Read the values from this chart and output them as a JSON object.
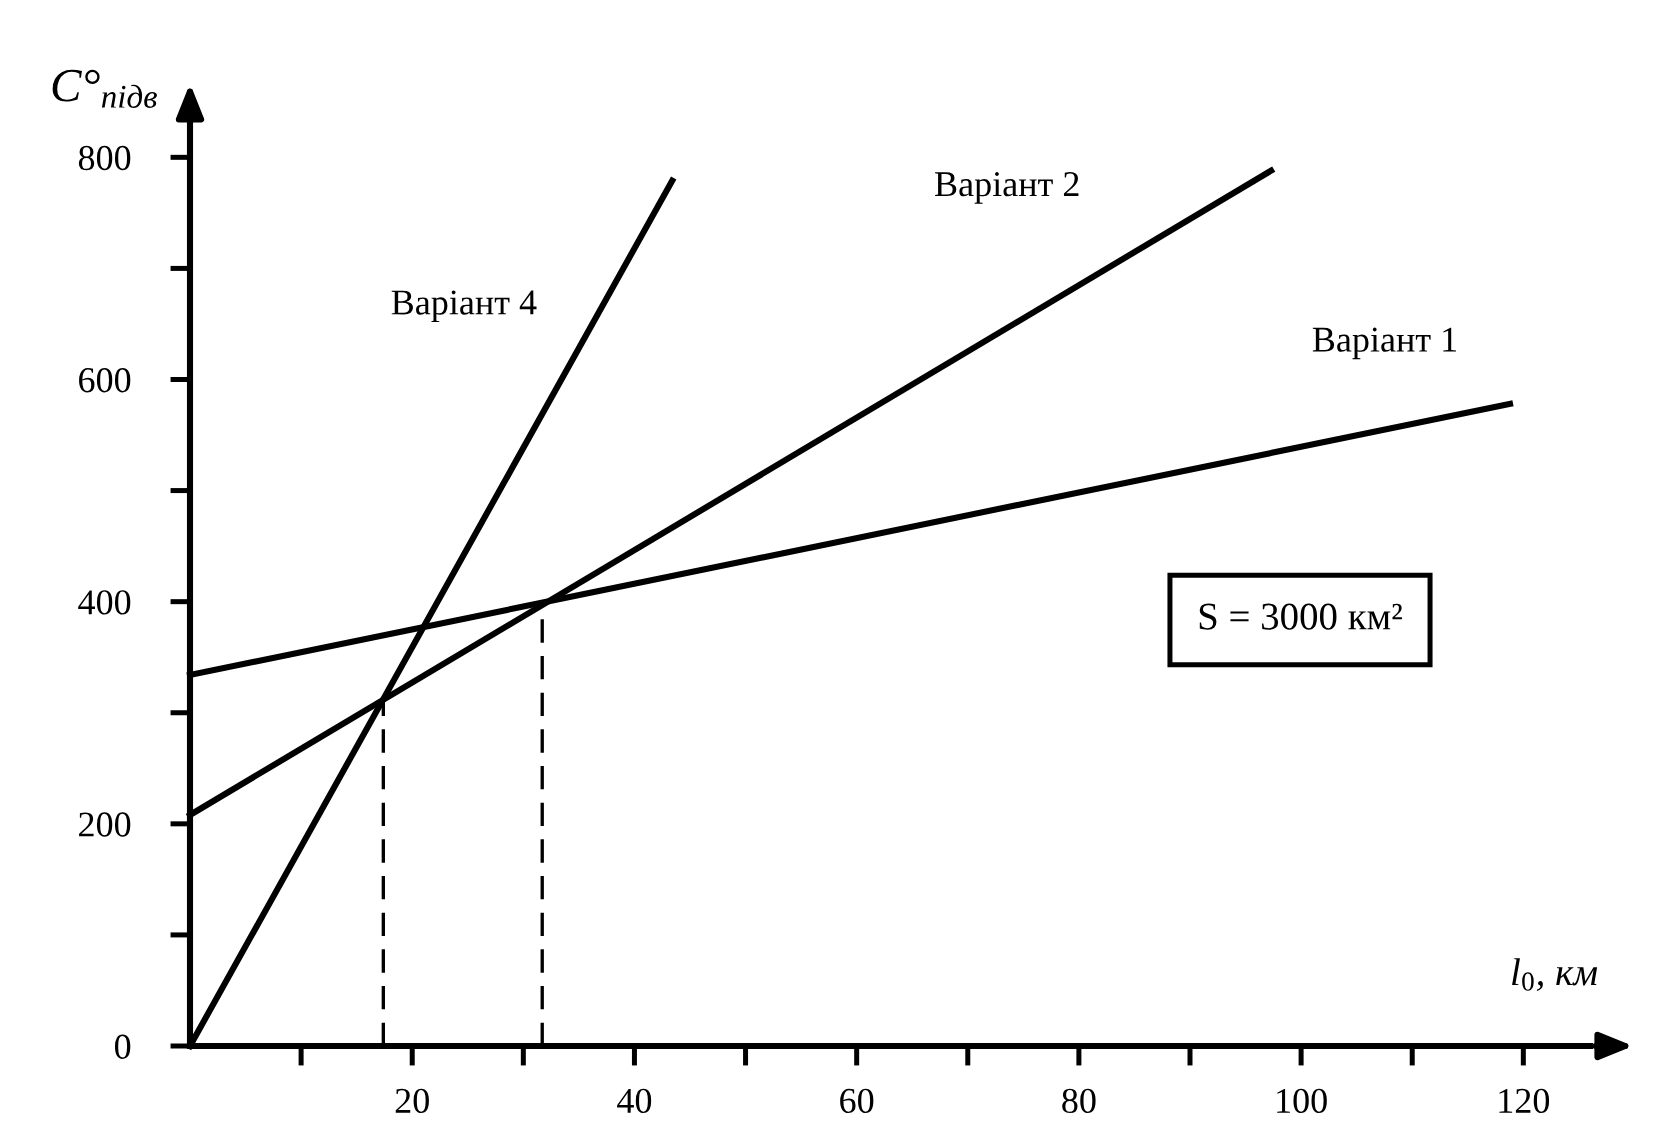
{
  "chart_data": {
    "type": "line",
    "ylabel": "C°$_{підв}$",
    "xlabel": "l$_{0}$, км",
    "annotations": [
      "S = 3000 км²"
    ],
    "series": [
      {
        "name": "Варіант 1",
        "color": "#000000",
        "x": [
          0,
          118.8
        ],
        "values": [
          334,
          578
        ]
      },
      {
        "name": "Варіант 2",
        "color": "#000000",
        "x": [
          0,
          97.3
        ],
        "values": [
          208,
          788
        ]
      },
      {
        "name": "Варіант 4",
        "color": "#000000",
        "x": [
          0,
          43.4
        ],
        "values": [
          0,
          779
        ]
      },
      {
        "color": "#000000",
        "x": [
          17.4,
          17.4
        ],
        "values": [
          0,
          313
        ],
        "line_style": "dashed"
      },
      {
        "color": "#000000",
        "x": [
          31.7,
          31.7
        ],
        "values": [
          0,
          400
        ],
        "line_style": "dashed"
      }
    ],
    "xlim": [
      0,
      126
    ],
    "ylim": [
      0,
      830
    ],
    "xticks": [
      {
        "value": 10,
        "label": null
      },
      20,
      {
        "value": 30,
        "label": null
      },
      40,
      {
        "value": 50,
        "label": null
      },
      60,
      {
        "value": 70,
        "label": null
      },
      80,
      {
        "value": 90,
        "label": null
      },
      100,
      {
        "value": 110,
        "label": null
      },
      120
    ],
    "yticks": [
      0,
      {
        "value": 100,
        "label": null
      },
      200,
      {
        "value": 300,
        "label": null
      },
      400,
      {
        "value": 500,
        "label": null
      },
      600,
      {
        "value": 700,
        "label": null
      },
      800
    ],
    "grid": false,
    "legend": false,
    "marker": "none",
    "line_style": "solid"
  }
}
